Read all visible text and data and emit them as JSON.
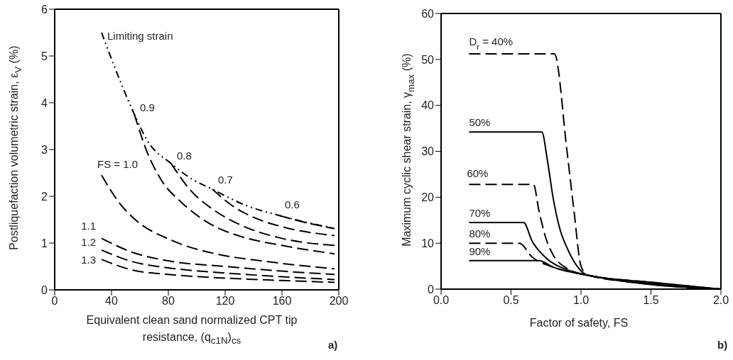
{
  "chart_data": [
    {
      "type": "line",
      "xlabel": "Equivalent clean sand normalized CPT tip resistance, (q$_{c1N}$)$_{cs}$",
      "ylabel": "Postliquefaction volumetric strain, ε$_{V}$ (%)",
      "annotations": [
        "a)"
      ],
      "xlim": [
        0,
        200
      ],
      "ylim": [
        0,
        6
      ],
      "xticks": [
        0,
        40,
        80,
        120,
        160,
        200
      ],
      "yticks": [
        0,
        1,
        2,
        3,
        4,
        5,
        6
      ],
      "marker": "none",
      "series": [
        {
          "name": "Limiting strain",
          "color": "#000000",
          "line_style": "dotted",
          "x": [
            33,
            43,
            56,
            65,
            82,
            95,
            111,
            135,
            158,
            197
          ],
          "values": [
            5.5,
            4.7,
            3.76,
            3.2,
            2.7,
            2.4,
            2.15,
            1.8,
            1.59,
            1.31
          ]
        },
        {
          "name": "0.9",
          "color": "#000000",
          "line_style": "dashed",
          "x": [
            56,
            65,
            75,
            90,
            110,
            130,
            160,
            197
          ],
          "values": [
            3.76,
            2.95,
            2.35,
            1.85,
            1.4,
            1.15,
            0.95,
            0.77
          ]
        },
        {
          "name": "0.8",
          "color": "#000000",
          "line_style": "dashed",
          "x": [
            82,
            95,
            110,
            130,
            160,
            197
          ],
          "values": [
            2.7,
            2.15,
            1.75,
            1.4,
            1.1,
            0.95
          ]
        },
        {
          "name": "0.7",
          "color": "#000000",
          "line_style": "dashed",
          "x": [
            111,
            125,
            140,
            160,
            197
          ],
          "values": [
            2.15,
            1.8,
            1.55,
            1.35,
            1.16
          ]
        },
        {
          "name": "0.6",
          "color": "#000000",
          "line_style": "dashed",
          "x": [
            158,
            175,
            197
          ],
          "values": [
            1.59,
            1.45,
            1.31
          ]
        },
        {
          "name": "FS = 1.0",
          "color": "#000000",
          "line_style": "dashed",
          "x": [
            33,
            46,
            56,
            83,
            115,
            148,
            197
          ],
          "values": [
            2.45,
            1.84,
            1.52,
            1.05,
            0.76,
            0.61,
            0.45
          ]
        },
        {
          "name": "1.1",
          "color": "#000000",
          "line_style": "dashed",
          "x": [
            33,
            55,
            80,
            120,
            160,
            197
          ],
          "values": [
            1.1,
            0.8,
            0.62,
            0.5,
            0.4,
            0.33
          ]
        },
        {
          "name": "1.2",
          "color": "#000000",
          "line_style": "dashed",
          "x": [
            33,
            55,
            80,
            120,
            160,
            197
          ],
          "values": [
            0.85,
            0.6,
            0.47,
            0.36,
            0.28,
            0.22
          ]
        },
        {
          "name": "1.3",
          "color": "#000000",
          "line_style": "dashed",
          "x": [
            33,
            55,
            80,
            120,
            160,
            197
          ],
          "values": [
            0.65,
            0.42,
            0.33,
            0.25,
            0.2,
            0.16
          ]
        }
      ]
    },
    {
      "type": "line",
      "xlabel": "Factor of safety,  FS",
      "ylabel": "Maximum cyclic shear strain, γ$_{max}$ (%)",
      "annotations": [
        "b)"
      ],
      "xlim": [
        0,
        2
      ],
      "ylim": [
        0,
        60
      ],
      "xticks": [
        {
          "value": 0,
          "label": "0.0"
        },
        0.5,
        {
          "value": 1,
          "label": "1.0"
        },
        1.5,
        {
          "value": 2,
          "label": "2.0"
        }
      ],
      "yticks": [
        0,
        10,
        20,
        30,
        40,
        50,
        60
      ],
      "marker": "none",
      "series": [
        {
          "name": "D$_{r}$ = 40%",
          "color": "#000000",
          "line_style": "dashed",
          "x": [
            0.2,
            0.81,
            0.9,
            0.95,
            1.0,
            1.05,
            1.5,
            2.0
          ],
          "values": [
            51.2,
            51.2,
            30,
            17,
            5,
            3,
            1.5,
            0
          ]
        },
        {
          "name": "50%",
          "color": "#000000",
          "line_style": "solid",
          "x": [
            0.2,
            0.72,
            0.76,
            0.8,
            0.85,
            0.9,
            0.95,
            1.05,
            1.5,
            2.0
          ],
          "values": [
            34.2,
            34.2,
            28,
            20,
            13,
            9,
            6,
            3,
            1.5,
            0
          ]
        },
        {
          "name": "60%",
          "color": "#000000",
          "line_style": "dashed",
          "x": [
            0.2,
            0.66,
            0.7,
            0.75,
            0.8,
            0.9,
            1.05,
            1.5,
            2.0
          ],
          "values": [
            22.8,
            22.8,
            17,
            11,
            7.5,
            4.5,
            3,
            1.2,
            0
          ]
        },
        {
          "name": "70%",
          "color": "#000000",
          "line_style": "solid",
          "x": [
            0.2,
            0.59,
            0.65,
            0.75,
            0.9,
            1.05,
            1.5,
            2.0
          ],
          "values": [
            14.5,
            14.5,
            10.5,
            6.8,
            4.2,
            3,
            1.2,
            0
          ]
        },
        {
          "name": "80%",
          "color": "#000000",
          "line_style": "dashed",
          "x": [
            0.2,
            0.56,
            0.65,
            0.8,
            1.05,
            1.5,
            2.0
          ],
          "values": [
            10,
            10,
            7,
            4.8,
            3,
            1,
            0
          ]
        },
        {
          "name": "90%",
          "color": "#000000",
          "line_style": "solid",
          "x": [
            0.2,
            0.7,
            0.8,
            1.05,
            1.5,
            2.0
          ],
          "values": [
            6.2,
            6.2,
            4.8,
            3,
            1,
            0
          ]
        }
      ]
    }
  ]
}
